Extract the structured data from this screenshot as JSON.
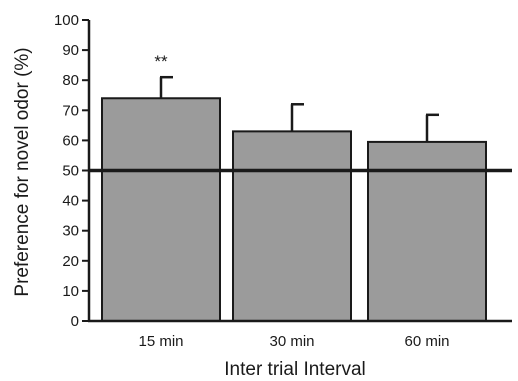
{
  "chart_data": {
    "type": "bar",
    "categories": [
      "15 min",
      "30 min",
      "60 min"
    ],
    "values": [
      74,
      63,
      59.5
    ],
    "errors": [
      7,
      9,
      9
    ],
    "annotations": [
      {
        "category": "15 min",
        "text": "**"
      }
    ],
    "xlabel": "Inter trial Interval",
    "ylabel": "Preference for novel odor (%)",
    "ylim": [
      0,
      100
    ],
    "yticks": [
      0,
      10,
      20,
      30,
      40,
      50,
      60,
      70,
      80,
      90,
      100
    ],
    "reference_line": 50,
    "grid": false,
    "colors": {
      "bar": "#9b9b9b",
      "edge": "#1a1a1a"
    }
  }
}
